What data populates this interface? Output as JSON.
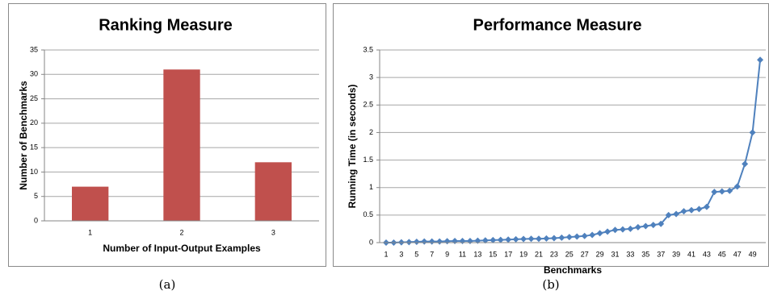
{
  "chart_data": [
    {
      "type": "bar",
      "title": "Ranking Measure",
      "x_label": "Number of Input-Output Examples",
      "y_label": "Number of Benchmarks",
      "categories": [
        "1",
        "2",
        "3"
      ],
      "values": [
        7,
        31,
        12
      ],
      "color": "#c0504d",
      "ylim": [
        0,
        35
      ],
      "yticks": [
        0,
        5,
        10,
        15,
        20,
        25,
        30,
        35
      ],
      "grid": true,
      "caption": "(a)"
    },
    {
      "type": "line",
      "title": "Performance Measure",
      "x_label": "Benchmarks",
      "y_label": "Running Time (in seconds)",
      "categories": [
        "1",
        null,
        "3",
        null,
        "5",
        null,
        "7",
        null,
        "9",
        null,
        "11",
        null,
        "13",
        null,
        "15",
        null,
        "17",
        null,
        "19",
        null,
        "21",
        null,
        "23",
        null,
        "25",
        null,
        "27",
        null,
        "29",
        null,
        "31",
        null,
        "33",
        null,
        "35",
        null,
        "37",
        null,
        "39",
        null,
        "41",
        null,
        "43",
        null,
        "45",
        null,
        "47",
        null,
        "49",
        null
      ],
      "values": [
        0.0,
        0.0,
        0.005,
        0.01,
        0.015,
        0.02,
        0.02,
        0.02,
        0.025,
        0.03,
        0.03,
        0.03,
        0.035,
        0.04,
        0.045,
        0.05,
        0.055,
        0.06,
        0.065,
        0.07,
        0.07,
        0.075,
        0.08,
        0.09,
        0.1,
        0.11,
        0.12,
        0.14,
        0.17,
        0.2,
        0.23,
        0.24,
        0.25,
        0.28,
        0.3,
        0.32,
        0.34,
        0.5,
        0.52,
        0.57,
        0.59,
        0.61,
        0.65,
        0.92,
        0.93,
        0.94,
        1.02,
        1.43,
        2.0,
        3.32
      ],
      "color": "#4f81bd",
      "ylim": [
        0,
        3.5
      ],
      "yticks": [
        0,
        0.5,
        1,
        1.5,
        2,
        2.5,
        3,
        3.5
      ],
      "grid": true,
      "caption": "(b)"
    }
  ]
}
